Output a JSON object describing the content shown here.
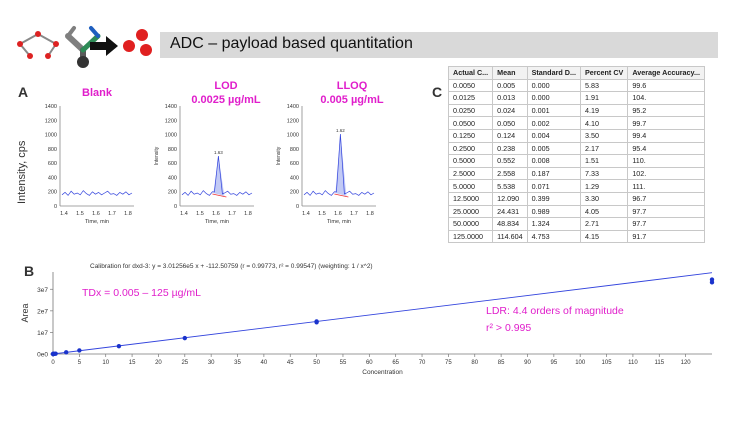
{
  "header": {
    "title": "ADC – payload based quantitation"
  },
  "panels": {
    "a": "A",
    "b": "B",
    "c": "C"
  },
  "y_axis_label": "Intensity, cps",
  "chromatograms": [
    {
      "id": "blank",
      "title_line1": "Blank",
      "title_line2": "",
      "y_ticks": [
        "1400",
        "1200",
        "1000",
        "800",
        "600",
        "400",
        "200",
        "0"
      ],
      "x_ticks": [
        "1.4",
        "1.5",
        "1.6",
        "1.7",
        "1.8"
      ],
      "xlabel": "Time, min",
      "ylabel": "",
      "peak_label": ""
    },
    {
      "id": "lod",
      "title_line1": "LOD",
      "title_line2": "0.0025 µg/mL",
      "y_ticks": [
        "1400",
        "1200",
        "1000",
        "800",
        "600",
        "400",
        "200",
        "0"
      ],
      "x_ticks": [
        "1.4",
        "1.5",
        "1.6",
        "1.7",
        "1.8"
      ],
      "xlabel": "Time, min",
      "ylabel": "Intensity",
      "peak_label": "1.63"
    },
    {
      "id": "lloq",
      "title_line1": "LLOQ",
      "title_line2": "0.005 µg/mL",
      "y_ticks": [
        "1400",
        "1200",
        "1000",
        "800",
        "600",
        "400",
        "200",
        "0"
      ],
      "x_ticks": [
        "1.4",
        "1.5",
        "1.6",
        "1.7",
        "1.8"
      ],
      "xlabel": "Time, min",
      "ylabel": "Intensity",
      "peak_label": "1.62"
    }
  ],
  "table": {
    "headers": [
      "Actual C...",
      "Mean",
      "Standard  D...",
      "Percent CV",
      "Average  Accuracy..."
    ],
    "rows": [
      [
        "0.0050",
        "0.005",
        "0.000",
        "5.83",
        "99.6"
      ],
      [
        "0.0125",
        "0.013",
        "0.000",
        "1.91",
        "104."
      ],
      [
        "0.0250",
        "0.024",
        "0.001",
        "4.19",
        "95.2"
      ],
      [
        "0.0500",
        "0.050",
        "0.002",
        "4.10",
        "99.7"
      ],
      [
        "0.1250",
        "0.124",
        "0.004",
        "3.50",
        "99.4"
      ],
      [
        "0.2500",
        "0.238",
        "0.005",
        "2.17",
        "95.4"
      ],
      [
        "0.5000",
        "0.552",
        "0.008",
        "1.51",
        "110."
      ],
      [
        "2.5000",
        "2.558",
        "0.187",
        "7.33",
        "102."
      ],
      [
        "5.0000",
        "5.538",
        "0.071",
        "1.29",
        "111."
      ],
      [
        "12.5000",
        "12.090",
        "0.399",
        "3.30",
        "96.7"
      ],
      [
        "25.0000",
        "24.431",
        "0.989",
        "4.05",
        "97.7"
      ],
      [
        "50.0000",
        "48.834",
        "1.324",
        "2.71",
        "97.7"
      ],
      [
        "125.0000",
        "114.604",
        "4.753",
        "4.15",
        "91.7"
      ]
    ]
  },
  "calibration": {
    "equation": "Calibration for dxd-3: y = 3.01256e5 x + -112.50759 (r = 0.99773, r² = 0.99547)  (weighting: 1 / x^2)",
    "range_label": "TDx = 0.005 – 125 µg/mL",
    "ldr_label": "LDR: 4.4 orders of magnitude",
    "r2_label": "r² > 0.995",
    "xlabel": "Concentration",
    "ylabel": "Area",
    "y_ticks": [
      "3e7",
      "2e7",
      "1e7",
      "0e0"
    ],
    "x_ticks": [
      "0",
      "5",
      "10",
      "15",
      "20",
      "25",
      "30",
      "35",
      "40",
      "45",
      "50",
      "55",
      "60",
      "65",
      "70",
      "75",
      "80",
      "85",
      "90",
      "95",
      "100",
      "105",
      "110",
      "115",
      "120"
    ]
  },
  "chart_data": {
    "type": "scatter",
    "title": "Calibration for dxd-3: y = 3.01256e5 x + -112.50759 (r = 0.99773, r² = 0.99547)  (weighting: 1 / x^2)",
    "xlabel": "Concentration",
    "ylabel": "Area",
    "xlim": [
      0,
      125
    ],
    "ylim": [
      0,
      38000000
    ],
    "points": [
      {
        "x": 0.005,
        "y": 1400
      },
      {
        "x": 0.0125,
        "y": 3800
      },
      {
        "x": 0.025,
        "y": 7200
      },
      {
        "x": 0.05,
        "y": 15000
      },
      {
        "x": 0.125,
        "y": 37000
      },
      {
        "x": 0.25,
        "y": 72000
      },
      {
        "x": 0.5,
        "y": 166000
      },
      {
        "x": 2.5,
        "y": 770000
      },
      {
        "x": 5,
        "y": 1670000
      },
      {
        "x": 12.5,
        "y": 3640000
      },
      {
        "x": 25,
        "y": 7360000
      },
      {
        "x": 50,
        "y": 14700000
      },
      {
        "x": 50,
        "y": 15100000
      },
      {
        "x": 125,
        "y": 34500000
      },
      {
        "x": 125,
        "y": 33200000
      }
    ],
    "fit": {
      "slope": 301256,
      "intercept": -112.50759
    },
    "line_color": "#3344dd",
    "point_color": "#1a33cc"
  },
  "colors": {
    "accent": "#e01ecb",
    "trace": "#3344dd"
  }
}
